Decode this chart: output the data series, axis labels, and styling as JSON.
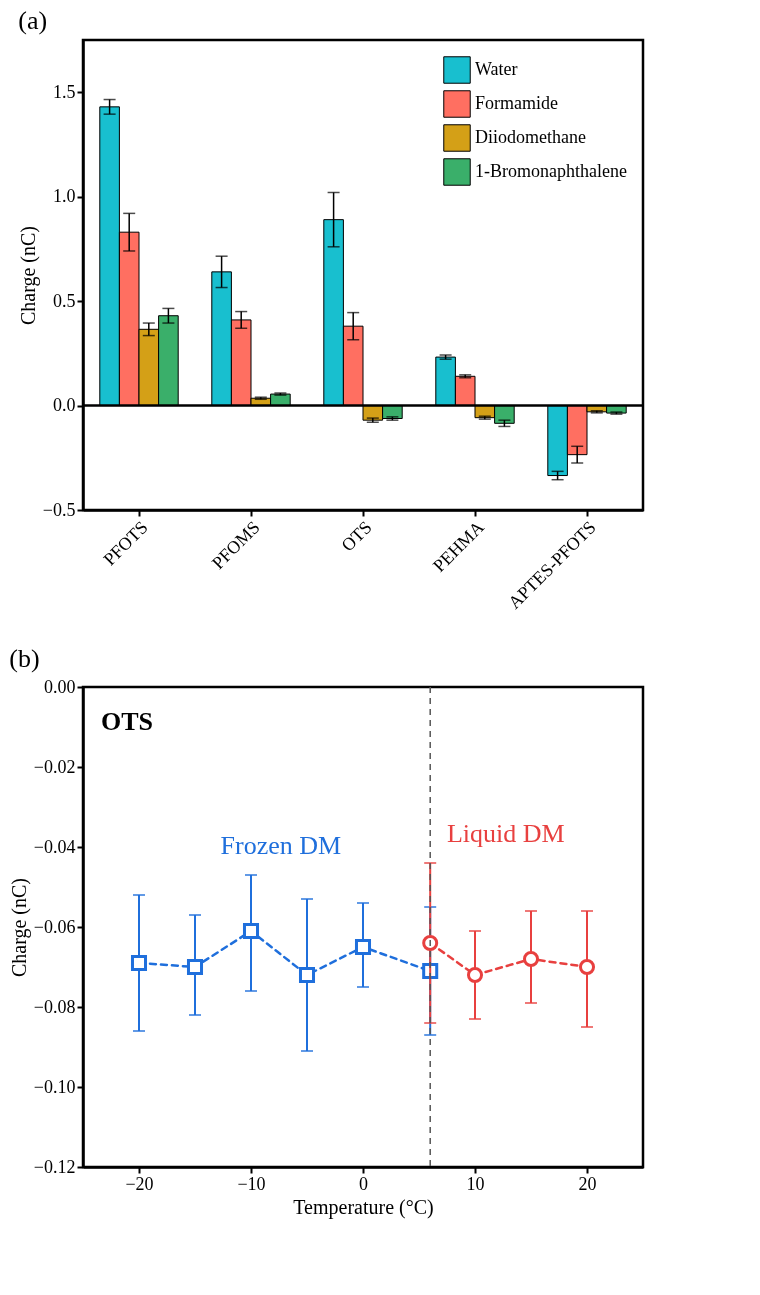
{
  "chart_data": [
    {
      "type": "bar",
      "title": "(a)",
      "ylabel": "Charge (nC)",
      "categories": [
        "PFOTS",
        "PFOMS",
        "OTS",
        "PEHMA",
        "APTES-PFOTS"
      ],
      "series": [
        {
          "name": "Water",
          "color": "#18bfcf",
          "values": [
            1.43,
            0.64,
            0.89,
            0.232,
            -0.335
          ],
          "errors": [
            0.035,
            0.075,
            0.13,
            0.01,
            0.02
          ]
        },
        {
          "name": "Formamide",
          "color": "#ff6f61",
          "values": [
            0.83,
            0.41,
            0.38,
            0.14,
            -0.235
          ],
          "errors": [
            0.09,
            0.04,
            0.065,
            0.007,
            0.04
          ]
        },
        {
          "name": "Diiodomethane",
          "color": "#d4a017",
          "values": [
            0.365,
            0.035,
            -0.07,
            -0.058,
            -0.03
          ],
          "errors": [
            0.03,
            0.005,
            0.01,
            0.007,
            0.005
          ]
        },
        {
          "name": "1-Bromonaphthalene",
          "color": "#3aaf6a",
          "values": [
            0.43,
            0.055,
            -0.062,
            -0.085,
            -0.036
          ],
          "errors": [
            0.035,
            0.005,
            0.008,
            0.015,
            0.005
          ]
        }
      ],
      "ylim": [
        -0.5,
        1.75
      ],
      "yticks": [
        {
          "value": -0.5,
          "label": "−0.5"
        },
        {
          "value": 0,
          "label": "0.0"
        },
        {
          "value": 0.5,
          "label": "0.5"
        },
        {
          "value": 1,
          "label": "1.0"
        },
        {
          "value": 1.5,
          "label": "1.5"
        }
      ],
      "ref_lines": [
        {
          "axis": "y",
          "value": 0,
          "color": "#000000"
        }
      ],
      "legend": "top right"
    },
    {
      "type": "line",
      "title": "(b)",
      "xlabel": "Temperature (°C)",
      "ylabel": "Charge (nC)",
      "annotations": [
        "OTS"
      ],
      "series": [
        {
          "name": "Frozen DM",
          "color": "#1f6fdc",
          "marker": "square",
          "x": [
            -20,
            -15,
            -10,
            -5,
            0,
            6
          ],
          "values": [
            -0.069,
            -0.07,
            -0.061,
            -0.072,
            -0.065,
            -0.071
          ],
          "errors": [
            [
              -0.086,
              -0.052
            ],
            [
              -0.082,
              -0.057
            ],
            [
              -0.076,
              -0.047
            ],
            [
              -0.091,
              -0.053
            ],
            [
              -0.075,
              -0.054
            ],
            [
              -0.087,
              -0.055
            ]
          ]
        },
        {
          "name": "Liquid DM",
          "color": "#e8403f",
          "marker": "circle",
          "x": [
            6,
            10,
            15,
            20
          ],
          "values": [
            -0.064,
            -0.072,
            -0.068,
            -0.07
          ],
          "errors": [
            [
              -0.084,
              -0.044
            ],
            [
              -0.083,
              -0.061
            ],
            [
              -0.079,
              -0.056
            ],
            [
              -0.085,
              -0.056
            ]
          ]
        }
      ],
      "xlim": [
        -25,
        25
      ],
      "xticks": [
        {
          "value": -20,
          "label": "−20"
        },
        {
          "value": -10,
          "label": "−10"
        },
        0,
        10,
        20
      ],
      "ylim": [
        -0.12,
        0
      ],
      "yticks": [
        {
          "value": -0.12,
          "label": "−0.12"
        },
        {
          "value": -0.1,
          "label": "−0.10"
        },
        {
          "value": -0.08,
          "label": "−0.08"
        },
        {
          "value": -0.06,
          "label": "−0.06"
        },
        {
          "value": -0.04,
          "label": "−0.04"
        },
        {
          "value": -0.02,
          "label": "−0.02"
        },
        {
          "value": 0,
          "label": "0.00"
        }
      ],
      "ref_lines": [
        {
          "axis": "x",
          "value": 6,
          "color": "#555555",
          "line_style": "dashed"
        }
      ],
      "line_style": "dashed"
    }
  ]
}
